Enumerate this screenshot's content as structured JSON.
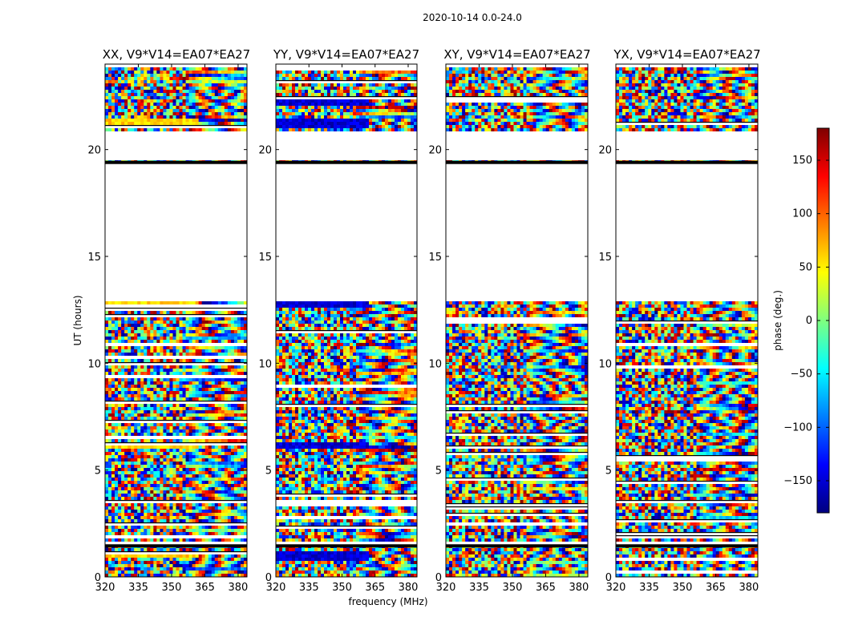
{
  "figure": {
    "suptitle": "2020-10-14 0.0-24.0"
  },
  "chart_data": [
    {
      "type": "heatmap",
      "title": "XX, V9*V14=EA07*EA27",
      "xlabel": "",
      "ylabel": "UT (hours)",
      "xlim": [
        320,
        384
      ],
      "ylim": [
        0,
        24
      ],
      "xticks": [
        320,
        335,
        350,
        365,
        380
      ],
      "yticks": [
        0,
        5,
        10,
        15,
        20
      ],
      "value": "phase (deg.)",
      "low_freq_bias": [
        {
          "ut_from": 0.85,
          "ut_to": 1.1,
          "phase": 60
        },
        {
          "ut_from": 5.95,
          "ut_to": 6.25,
          "phase": 60
        },
        {
          "ut_from": 21.0,
          "ut_to": 21.5,
          "phase": 60
        },
        {
          "ut_from": 12.6,
          "ut_to": 12.9,
          "phase": 60
        }
      ]
    },
    {
      "type": "heatmap",
      "title": "YY, V9*V14=EA07*EA27",
      "xlabel": "frequency (MHz)",
      "ylabel": "",
      "xlim": [
        320,
        384
      ],
      "ylim": [
        0,
        24
      ],
      "xticks": [
        320,
        335,
        350,
        365,
        380
      ],
      "yticks": [
        0,
        5,
        10,
        15,
        20
      ],
      "value": "phase (deg.)",
      "low_freq_bias": [
        {
          "ut_from": 0.7,
          "ut_to": 1.2,
          "phase": -150
        },
        {
          "ut_from": 5.95,
          "ut_to": 6.25,
          "phase": -150
        },
        {
          "ut_from": 21.0,
          "ut_to": 21.5,
          "phase": -150
        },
        {
          "ut_from": 22.0,
          "ut_to": 22.5,
          "phase": -150
        },
        {
          "ut_from": 12.6,
          "ut_to": 12.9,
          "phase": -150
        }
      ]
    },
    {
      "type": "heatmap",
      "title": "XY, V9*V14=EA07*EA27",
      "xlabel": "",
      "ylabel": "",
      "xlim": [
        320,
        384
      ],
      "ylim": [
        0,
        24
      ],
      "xticks": [
        320,
        335,
        350,
        365,
        380
      ],
      "yticks": [
        0,
        5,
        10,
        15,
        20
      ],
      "value": "phase (deg.)",
      "low_freq_bias": []
    },
    {
      "type": "heatmap",
      "title": "YX, V9*V14=EA07*EA27",
      "xlabel": "",
      "ylabel": "",
      "xlim": [
        320,
        384
      ],
      "ylim": [
        0,
        24
      ],
      "xticks": [
        320,
        335,
        350,
        365,
        380
      ],
      "yticks": [
        0,
        5,
        10,
        15,
        20
      ],
      "value": "phase (deg.)",
      "low_freq_bias": []
    }
  ],
  "data_coverage": {
    "blank_ut_ranges": [
      [
        1.5,
        1.6
      ],
      [
        12.9,
        19.3
      ],
      [
        19.5,
        20.9
      ],
      [
        23.8,
        24.0
      ]
    ],
    "thick_black_rows_ut": [
      1.45,
      19.4
    ]
  },
  "colorbar": {
    "label": "phase (deg.)",
    "range": [
      -180,
      180
    ],
    "ticks": [
      150,
      100,
      50,
      0,
      -50,
      -100,
      -150
    ],
    "tick_labels": [
      "150",
      "100",
      "50",
      "0",
      "−50",
      "−100",
      "−150"
    ],
    "colormap": "jet",
    "colormap_stops": [
      "#00007f",
      "#0000ff",
      "#007fff",
      "#00ffff",
      "#7fff7f",
      "#ffff00",
      "#ff7f00",
      "#ff0000",
      "#7f0000"
    ]
  }
}
